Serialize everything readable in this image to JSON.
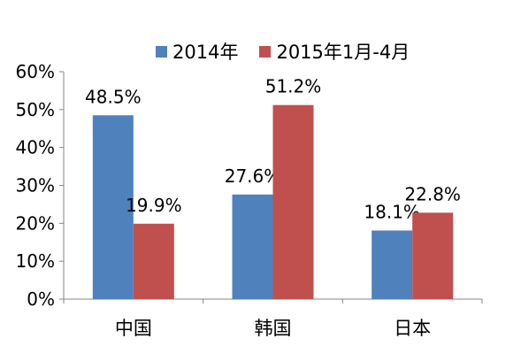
{
  "chart_data": {
    "type": "bar",
    "categories": [
      "中国",
      "韩国",
      "日本"
    ],
    "series": [
      {
        "name": "2014年",
        "values": [
          48.5,
          27.6,
          18.1
        ],
        "labels": [
          "48.5%",
          "27.6%",
          "18.1%"
        ],
        "color": "#4F81BD"
      },
      {
        "name": "2015年1月-4月",
        "values": [
          19.9,
          51.2,
          22.8
        ],
        "labels": [
          "19.9%",
          "51.2%",
          "22.8%"
        ],
        "color": "#C0504D"
      }
    ],
    "ylim": [
      0,
      60
    ],
    "yticks": [
      "0%",
      "10%",
      "20%",
      "30%",
      "40%",
      "50%",
      "60%"
    ],
    "grid": false,
    "legend_position": "top",
    "title": "",
    "xlabel": "",
    "ylabel": ""
  }
}
